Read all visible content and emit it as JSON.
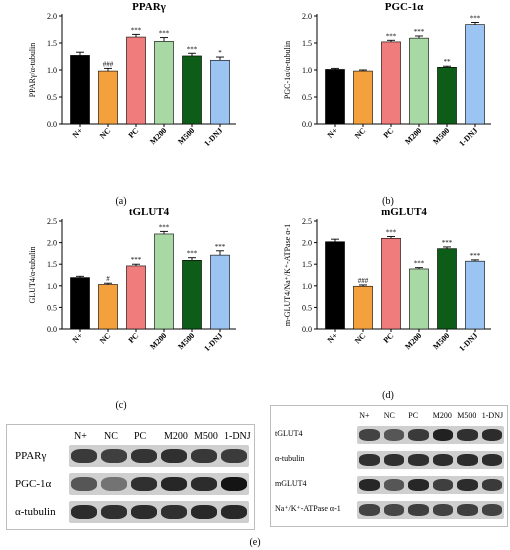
{
  "captions": [
    "(a)",
    "(b)",
    "(c)",
    "(d)",
    "(e)"
  ],
  "chart_data": [
    {
      "type": "bar",
      "title": "PPARγ",
      "ylabel": "PPARγ/α-tubulin",
      "categories": [
        "N+",
        "NC",
        "PC",
        "M200",
        "M500",
        "1-DNJ"
      ],
      "values": [
        1.27,
        0.98,
        1.61,
        1.53,
        1.26,
        1.18
      ],
      "errors": [
        0.06,
        0.05,
        0.05,
        0.07,
        0.05,
        0.06
      ],
      "significance": [
        "",
        "###",
        "***",
        "***",
        "***",
        "*"
      ],
      "ylim": [
        0,
        2.0
      ],
      "yticks": [
        0.0,
        0.5,
        1.0,
        1.5,
        2.0
      ],
      "colors": [
        "#000000",
        "#f4a03c",
        "#f07c7c",
        "#a8d9a4",
        "#0d5c17",
        "#9cc4f2"
      ]
    },
    {
      "type": "bar",
      "title": "PGC-1α",
      "ylabel": "PGC-1α/α-tubulin",
      "categories": [
        "N+",
        "NC",
        "PC",
        "M200",
        "M500",
        "1-DNJ"
      ],
      "values": [
        1.01,
        0.98,
        1.52,
        1.59,
        1.05,
        1.84
      ],
      "errors": [
        0.02,
        0.02,
        0.03,
        0.04,
        0.02,
        0.04
      ],
      "significance": [
        "",
        "",
        "***",
        "***",
        "**",
        "***"
      ],
      "ylim": [
        0,
        2.0
      ],
      "yticks": [
        0.0,
        0.5,
        1.0,
        1.5,
        2.0
      ],
      "colors": [
        "#000000",
        "#f4a03c",
        "#f07c7c",
        "#a8d9a4",
        "#0d5c17",
        "#9cc4f2"
      ]
    },
    {
      "type": "bar",
      "title": "tGLUT4",
      "ylabel": "GLUT4/α-tubulin",
      "categories": [
        "N+",
        "NC",
        "PC",
        "M200",
        "M500",
        "1-DNJ"
      ],
      "values": [
        1.19,
        1.03,
        1.46,
        2.2,
        1.59,
        1.71
      ],
      "errors": [
        0.03,
        0.03,
        0.04,
        0.06,
        0.06,
        0.1
      ],
      "significance": [
        "",
        "#",
        "***",
        "***",
        "***",
        "***"
      ],
      "ylim": [
        0,
        2.5
      ],
      "yticks": [
        0.0,
        0.5,
        1.0,
        1.5,
        2.0,
        2.5
      ],
      "colors": [
        "#000000",
        "#f4a03c",
        "#f07c7c",
        "#a8d9a4",
        "#0d5c17",
        "#9cc4f2"
      ]
    },
    {
      "type": "bar",
      "title": "mGLUT4",
      "ylabel": "m-GLUT4/Na⁺/K⁺-ATPase α-1",
      "categories": [
        "N+",
        "NC",
        "PC",
        "M200",
        "M500",
        "1-DNJ"
      ],
      "values": [
        2.02,
        0.99,
        2.1,
        1.39,
        1.86,
        1.57
      ],
      "errors": [
        0.06,
        0.03,
        0.04,
        0.03,
        0.04,
        0.03
      ],
      "significance": [
        "",
        "###",
        "***",
        "***",
        "***",
        "***"
      ],
      "ylim": [
        0,
        2.5
      ],
      "yticks": [
        0.0,
        0.5,
        1.0,
        1.5,
        2.0,
        2.5
      ],
      "colors": [
        "#000000",
        "#f4a03c",
        "#f07c7c",
        "#a8d9a4",
        "#0d5c17",
        "#9cc4f2"
      ]
    }
  ],
  "blots": {
    "left": {
      "headers": [
        "N+",
        "NC",
        "PC",
        "M200",
        "M500",
        "1-DNJ"
      ],
      "rows": [
        {
          "label": "PPARγ",
          "intensities": [
            0.75,
            0.72,
            0.78,
            0.8,
            0.76,
            0.74
          ]
        },
        {
          "label": "PGC-1α",
          "intensities": [
            0.6,
            0.45,
            0.8,
            0.85,
            0.82,
            0.95
          ]
        },
        {
          "label": "α-tubulin",
          "intensities": [
            0.82,
            0.8,
            0.82,
            0.8,
            0.84,
            0.84
          ]
        }
      ]
    },
    "right": {
      "headers": [
        "N+",
        "NC",
        "PC",
        "M200",
        "M500",
        "1-DNJ"
      ],
      "rows": [
        {
          "label": "tGLUT4",
          "intensities": [
            0.7,
            0.6,
            0.75,
            0.88,
            0.8,
            0.82
          ]
        },
        {
          "label": "α-tubulin",
          "intensities": [
            0.8,
            0.8,
            0.8,
            0.82,
            0.82,
            0.82
          ]
        },
        {
          "label": "mGLUT4",
          "intensities": [
            0.85,
            0.6,
            0.85,
            0.72,
            0.82,
            0.75
          ]
        },
        {
          "label": "Na⁺/K⁺-ATPase α-1",
          "intensities": [
            0.7,
            0.68,
            0.72,
            0.7,
            0.72,
            0.7
          ]
        }
      ]
    }
  }
}
